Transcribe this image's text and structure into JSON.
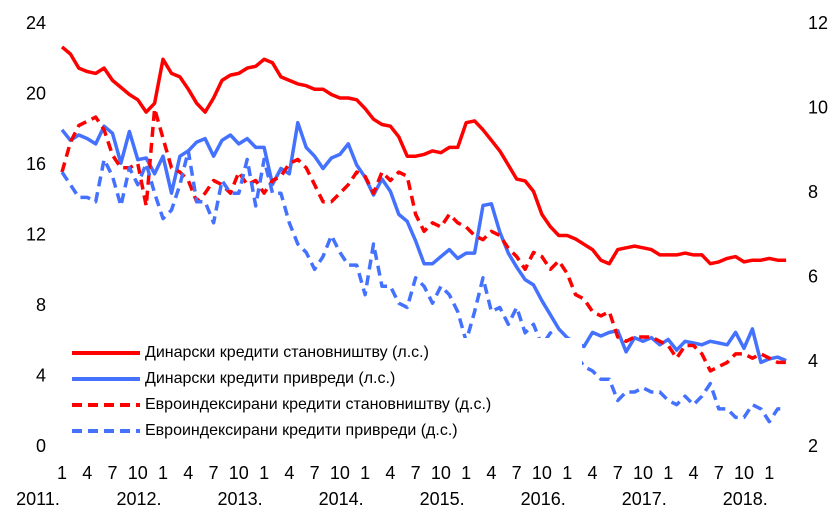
{
  "chart_data": {
    "type": "line",
    "categories": [
      "1",
      null,
      null,
      "4",
      null,
      null,
      "7",
      null,
      null,
      "10",
      null,
      null,
      "1",
      null,
      null,
      "4",
      null,
      null,
      "7",
      null,
      null,
      "10",
      null,
      null,
      "1",
      null,
      null,
      "4",
      null,
      null,
      "7",
      null,
      null,
      "10",
      null,
      null,
      "1",
      null,
      null,
      "4",
      null,
      null,
      "7",
      null,
      null,
      "10",
      null,
      null,
      "1",
      null,
      null,
      "4",
      null,
      null,
      "7",
      null,
      null,
      "10",
      null,
      null,
      "1",
      null,
      null,
      "4",
      null,
      null,
      "7",
      null,
      null,
      "10",
      null,
      null,
      "1",
      null,
      null,
      "4",
      null,
      null,
      "7",
      null,
      null,
      "10",
      null,
      null,
      "1",
      null,
      null
    ],
    "x_groups": [
      "2011.",
      "2012.",
      "2013.",
      "2014.",
      "2015.",
      "2016.",
      "2017.",
      "2018."
    ],
    "ylim": [
      0,
      24
    ],
    "yticks": [
      0,
      4,
      8,
      12,
      16,
      20,
      24
    ],
    "y2lim": [
      2,
      12
    ],
    "y2ticks": [
      2,
      4,
      6,
      8,
      10,
      12
    ],
    "series": [
      {
        "name": "Динарски кредити становништву (л.с.)",
        "color": "#ff0000",
        "dashed": false,
        "values": [
          22.7,
          22.3,
          21.5,
          21.3,
          21.2,
          21.5,
          20.8,
          20.4,
          20.0,
          19.7,
          19.0,
          19.5,
          22.0,
          21.2,
          21.0,
          20.3,
          19.5,
          19.0,
          19.8,
          20.8,
          21.1,
          21.2,
          21.5,
          21.6,
          22.0,
          21.8,
          21.0,
          20.8,
          20.6,
          20.5,
          20.3,
          20.3,
          20.0,
          19.8,
          19.8,
          19.7,
          19.2,
          18.6,
          18.3,
          18.2,
          17.6,
          16.5,
          16.5,
          16.6,
          16.8,
          16.7,
          17.0,
          17.0,
          18.4,
          18.5,
          18.0,
          17.4,
          16.8,
          16.0,
          15.2,
          15.1,
          14.5,
          13.2,
          12.5,
          12.0,
          12.0,
          11.8,
          11.5,
          11.2,
          10.6,
          10.4,
          11.2,
          11.3,
          11.4,
          11.3,
          11.2,
          10.9,
          10.9,
          10.9,
          11.0,
          10.9,
          10.9,
          10.4,
          10.5,
          10.7,
          10.8,
          10.5,
          10.6,
          10.6,
          10.7,
          10.6,
          10.6
        ]
      },
      {
        "name": "Динарски кредити привреди (л.с.)",
        "color": "#4472ff",
        "dashed": false,
        "values": [
          18.0,
          17.4,
          17.7,
          17.5,
          17.2,
          18.2,
          17.8,
          16.1,
          17.9,
          16.3,
          16.4,
          15.5,
          16.5,
          14.4,
          16.5,
          16.8,
          17.3,
          17.5,
          16.5,
          17.4,
          17.7,
          17.2,
          17.5,
          17.0,
          17.0,
          14.9,
          15.8,
          15.5,
          18.4,
          17.0,
          16.5,
          15.8,
          16.4,
          16.6,
          17.2,
          16.0,
          15.3,
          14.3,
          15.2,
          14.5,
          13.2,
          12.8,
          11.7,
          10.4,
          10.4,
          10.8,
          11.2,
          10.7,
          11.0,
          11.0,
          13.7,
          13.8,
          12.2,
          11.0,
          10.2,
          9.5,
          9.2,
          8.3,
          7.5,
          6.7,
          6.2,
          5.9,
          5.7,
          6.5,
          6.3,
          6.5,
          6.6,
          5.4,
          6.2,
          6.0,
          6.2,
          5.8,
          6.1,
          5.5,
          6.0,
          5.9,
          5.8,
          6.0,
          5.9,
          5.8,
          6.5,
          5.6,
          6.7,
          4.8,
          5.0,
          5.1,
          4.9
        ]
      },
      {
        "name": "Евроиндексирани кредити становништву (д.с.)",
        "color": "#ff0000",
        "dashed": true,
        "axis": "y2",
        "values": [
          8.5,
          9.2,
          9.6,
          9.7,
          9.8,
          9.5,
          8.9,
          8.6,
          8.6,
          8.7,
          7.7,
          10.0,
          9.3,
          8.6,
          8.5,
          8.3,
          7.8,
          8.0,
          8.3,
          8.2,
          8.0,
          8.5,
          8.2,
          8.3,
          8.0,
          8.3,
          8.4,
          8.7,
          8.8,
          8.6,
          8.2,
          7.8,
          7.8,
          8.0,
          8.2,
          8.5,
          8.4,
          8.0,
          8.5,
          8.3,
          8.5,
          8.4,
          7.5,
          7.1,
          7.3,
          7.2,
          7.5,
          7.3,
          7.2,
          7.0,
          6.9,
          7.1,
          7.0,
          6.7,
          6.5,
          6.2,
          6.6,
          6.5,
          6.2,
          6.4,
          6.1,
          5.6,
          5.5,
          5.2,
          5.1,
          5.2,
          4.6,
          4.5,
          4.6,
          4.6,
          4.6,
          4.5,
          4.4,
          4.1,
          4.4,
          4.4,
          4.2,
          3.8,
          3.9,
          4.0,
          4.2,
          4.2,
          4.1,
          4.2,
          4.1,
          4.0,
          4.0
        ]
      },
      {
        "name": "Евроиндексирани кредити привреди (д.с.)",
        "color": "#4472ff",
        "dashed": true,
        "axis": "y2",
        "values": [
          8.5,
          8.2,
          7.9,
          7.9,
          7.8,
          8.8,
          8.4,
          7.7,
          8.6,
          8.2,
          8.7,
          8.0,
          7.4,
          7.6,
          8.2,
          9.0,
          7.8,
          7.8,
          7.3,
          8.3,
          8.0,
          8.0,
          8.8,
          7.7,
          8.8,
          8.0,
          8.0,
          7.3,
          6.8,
          6.6,
          6.2,
          6.5,
          7.0,
          6.6,
          6.3,
          6.3,
          5.6,
          6.8,
          5.8,
          5.8,
          5.4,
          5.3,
          6.0,
          5.8,
          5.4,
          5.8,
          5.6,
          5.2,
          4.5,
          5.2,
          6.0,
          5.2,
          5.3,
          4.9,
          5.3,
          4.7,
          4.9,
          4.4,
          4.7,
          4.3,
          4.3,
          4.2,
          3.9,
          3.8,
          3.6,
          3.6,
          3.1,
          3.3,
          3.3,
          3.4,
          3.3,
          3.3,
          3.1,
          3.0,
          3.2,
          3.0,
          3.2,
          3.5,
          2.9,
          2.9,
          2.7,
          2.7,
          3.0,
          2.9,
          2.6,
          2.9,
          2.9
        ]
      }
    ],
    "legend": "lower left"
  }
}
